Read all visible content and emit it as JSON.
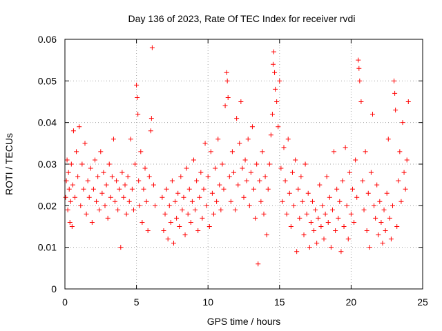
{
  "chart_data": {
    "type": "scatter",
    "title": "Day 136 of 2023, Rate Of TEC Index for receiver rvdi",
    "xlabel": "GPS time / hours",
    "ylabel": "ROTI / TECUs",
    "xlim": [
      0,
      25
    ],
    "ylim": [
      0,
      0.06
    ],
    "xticks": [
      0,
      5,
      10,
      15,
      20,
      25
    ],
    "xtick_labels": [
      "0",
      "5",
      "10",
      "15",
      "20",
      "25"
    ],
    "yticks": [
      0,
      0.01,
      0.02,
      0.03,
      0.04,
      0.05,
      0.06
    ],
    "ytick_labels": [
      "0",
      "0.01",
      "0.02",
      "0.03",
      "0.04",
      "0.05",
      "0.06"
    ],
    "grid": true,
    "marker": "plus",
    "color": "#ff0000",
    "series": [
      {
        "points": [
          [
            0.05,
            0.022
          ],
          [
            0.1,
            0.026
          ],
          [
            0.15,
            0.031
          ],
          [
            0.2,
            0.019
          ],
          [
            0.25,
            0.028
          ],
          [
            0.3,
            0.024
          ],
          [
            0.35,
            0.016
          ],
          [
            0.4,
            0.021
          ],
          [
            0.45,
            0.03
          ],
          [
            0.5,
            0.015
          ],
          [
            0.55,
            0.025
          ],
          [
            0.6,
            0.038
          ],
          [
            0.7,
            0.022
          ],
          [
            0.8,
            0.033
          ],
          [
            0.9,
            0.027
          ],
          [
            1.0,
            0.039
          ],
          [
            1.1,
            0.02
          ],
          [
            1.2,
            0.03
          ],
          [
            1.3,
            0.024
          ],
          [
            1.4,
            0.035
          ],
          [
            1.5,
            0.018
          ],
          [
            1.6,
            0.026
          ],
          [
            1.7,
            0.022
          ],
          [
            1.8,
            0.029
          ],
          [
            1.9,
            0.016
          ],
          [
            2.0,
            0.024
          ],
          [
            2.1,
            0.031
          ],
          [
            2.2,
            0.021
          ],
          [
            2.3,
            0.027
          ],
          [
            2.4,
            0.019
          ],
          [
            2.5,
            0.033
          ],
          [
            2.6,
            0.023
          ],
          [
            2.7,
            0.028
          ],
          [
            2.8,
            0.02
          ],
          [
            2.9,
            0.025
          ],
          [
            3.0,
            0.017
          ],
          [
            3.1,
            0.03
          ],
          [
            3.2,
            0.022
          ],
          [
            3.3,
            0.027
          ],
          [
            3.4,
            0.036
          ],
          [
            3.5,
            0.021
          ],
          [
            3.6,
            0.026
          ],
          [
            3.7,
            0.019
          ],
          [
            3.8,
            0.024
          ],
          [
            3.9,
            0.01
          ],
          [
            4.0,
            0.028
          ],
          [
            4.1,
            0.022
          ],
          [
            4.2,
            0.025
          ],
          [
            4.3,
            0.018
          ],
          [
            4.4,
            0.027
          ],
          [
            4.5,
            0.021
          ],
          [
            4.6,
            0.036
          ],
          [
            4.7,
            0.024
          ],
          [
            4.8,
            0.019
          ],
          [
            4.9,
            0.03
          ],
          [
            5.0,
            0.049
          ],
          [
            5.05,
            0.046
          ],
          [
            5.1,
            0.042
          ],
          [
            5.15,
            0.026
          ],
          [
            5.2,
            0.02
          ],
          [
            5.3,
            0.033
          ],
          [
            5.4,
            0.016
          ],
          [
            5.5,
            0.024
          ],
          [
            5.6,
            0.029
          ],
          [
            5.7,
            0.021
          ],
          [
            5.8,
            0.014
          ],
          [
            5.9,
            0.027
          ],
          [
            6.0,
            0.038
          ],
          [
            6.05,
            0.041
          ],
          [
            6.1,
            0.058
          ],
          [
            6.2,
            0.025
          ],
          [
            6.3,
            0.02
          ],
          [
            6.8,
            0.022
          ],
          [
            6.9,
            0.014
          ],
          [
            7.0,
            0.018
          ],
          [
            7.1,
            0.024
          ],
          [
            7.2,
            0.012
          ],
          [
            7.3,
            0.02
          ],
          [
            7.4,
            0.016
          ],
          [
            7.5,
            0.026
          ],
          [
            7.6,
            0.011
          ],
          [
            7.7,
            0.021
          ],
          [
            7.8,
            0.017
          ],
          [
            7.9,
            0.023
          ],
          [
            8.0,
            0.015
          ],
          [
            8.1,
            0.027
          ],
          [
            8.2,
            0.019
          ],
          [
            8.3,
            0.022
          ],
          [
            8.4,
            0.013
          ],
          [
            8.5,
            0.029
          ],
          [
            8.6,
            0.018
          ],
          [
            8.7,
            0.024
          ],
          [
            8.8,
            0.016
          ],
          [
            8.9,
            0.021
          ],
          [
            9.0,
            0.031
          ],
          [
            9.1,
            0.019
          ],
          [
            9.2,
            0.026
          ],
          [
            9.3,
            0.014
          ],
          [
            9.4,
            0.022
          ],
          [
            9.5,
            0.028
          ],
          [
            9.6,
            0.017
          ],
          [
            9.7,
            0.024
          ],
          [
            9.8,
            0.035
          ],
          [
            9.9,
            0.02
          ],
          [
            10.0,
            0.027
          ],
          [
            10.1,
            0.015
          ],
          [
            10.2,
            0.033
          ],
          [
            10.3,
            0.023
          ],
          [
            10.4,
            0.018
          ],
          [
            10.5,
            0.029
          ],
          [
            10.6,
            0.021
          ],
          [
            10.7,
            0.036
          ],
          [
            10.8,
            0.025
          ],
          [
            10.9,
            0.019
          ],
          [
            11.0,
            0.03
          ],
          [
            11.1,
            0.024
          ],
          [
            11.2,
            0.044
          ],
          [
            11.3,
            0.052
          ],
          [
            11.35,
            0.05
          ],
          [
            11.4,
            0.046
          ],
          [
            11.5,
            0.027
          ],
          [
            11.6,
            0.021
          ],
          [
            11.7,
            0.033
          ],
          [
            11.8,
            0.028
          ],
          [
            11.9,
            0.019
          ],
          [
            12.0,
            0.041
          ],
          [
            12.1,
            0.025
          ],
          [
            12.2,
            0.035
          ],
          [
            12.3,
            0.045
          ],
          [
            12.4,
            0.029
          ],
          [
            12.5,
            0.022
          ],
          [
            12.6,
            0.031
          ],
          [
            12.7,
            0.026
          ],
          [
            12.8,
            0.036
          ],
          [
            12.9,
            0.02
          ],
          [
            13.0,
            0.028
          ],
          [
            13.1,
            0.039
          ],
          [
            13.2,
            0.024
          ],
          [
            13.3,
            0.017
          ],
          [
            13.4,
            0.03
          ],
          [
            13.5,
            0.006
          ],
          [
            13.6,
            0.026
          ],
          [
            13.7,
            0.021
          ],
          [
            13.8,
            0.033
          ],
          [
            13.9,
            0.018
          ],
          [
            14.0,
            0.027
          ],
          [
            14.1,
            0.013
          ],
          [
            14.2,
            0.024
          ],
          [
            14.3,
            0.03
          ],
          [
            14.4,
            0.037
          ],
          [
            14.5,
            0.042
          ],
          [
            14.55,
            0.054
          ],
          [
            14.6,
            0.057
          ],
          [
            14.65,
            0.052
          ],
          [
            14.7,
            0.048
          ],
          [
            14.8,
            0.045
          ],
          [
            14.9,
            0.039
          ],
          [
            15.0,
            0.05
          ],
          [
            15.1,
            0.029
          ],
          [
            15.2,
            0.021
          ],
          [
            15.3,
            0.034
          ],
          [
            15.4,
            0.026
          ],
          [
            15.5,
            0.018
          ],
          [
            15.6,
            0.036
          ],
          [
            15.7,
            0.023
          ],
          [
            15.8,
            0.015
          ],
          [
            15.9,
            0.028
          ],
          [
            16.0,
            0.02
          ],
          [
            16.1,
            0.031
          ],
          [
            16.2,
            0.009
          ],
          [
            16.3,
            0.024
          ],
          [
            16.4,
            0.017
          ],
          [
            16.5,
            0.027
          ],
          [
            16.6,
            0.021
          ],
          [
            16.7,
            0.013
          ],
          [
            16.8,
            0.03
          ],
          [
            16.9,
            0.018
          ],
          [
            17.0,
            0.023
          ],
          [
            17.1,
            0.01
          ],
          [
            17.2,
            0.016
          ],
          [
            17.3,
            0.021
          ],
          [
            17.4,
            0.014
          ],
          [
            17.5,
            0.019
          ],
          [
            17.6,
            0.011
          ],
          [
            17.7,
            0.017
          ],
          [
            17.8,
            0.025
          ],
          [
            17.9,
            0.015
          ],
          [
            18.0,
            0.02
          ],
          [
            18.1,
            0.012
          ],
          [
            18.2,
            0.018
          ],
          [
            18.3,
            0.027
          ],
          [
            18.4,
            0.016
          ],
          [
            18.5,
            0.022
          ],
          [
            18.6,
            0.01
          ],
          [
            18.7,
            0.019
          ],
          [
            18.8,
            0.033
          ],
          [
            18.9,
            0.014
          ],
          [
            19.0,
            0.024
          ],
          [
            19.1,
            0.017
          ],
          [
            19.2,
            0.021
          ],
          [
            19.3,
            0.009
          ],
          [
            19.4,
            0.026
          ],
          [
            19.5,
            0.015
          ],
          [
            19.6,
            0.034
          ],
          [
            19.7,
            0.02
          ],
          [
            19.8,
            0.012
          ],
          [
            19.9,
            0.028
          ],
          [
            20.0,
            0.018
          ],
          [
            20.1,
            0.024
          ],
          [
            20.2,
            0.016
          ],
          [
            20.3,
            0.031
          ],
          [
            20.4,
            0.022
          ],
          [
            20.5,
            0.055
          ],
          [
            20.55,
            0.053
          ],
          [
            20.6,
            0.05
          ],
          [
            20.7,
            0.045
          ],
          [
            20.8,
            0.026
          ],
          [
            20.9,
            0.019
          ],
          [
            21.0,
            0.033
          ],
          [
            21.1,
            0.014
          ],
          [
            21.2,
            0.023
          ],
          [
            21.3,
            0.01
          ],
          [
            21.4,
            0.028
          ],
          [
            21.5,
            0.042
          ],
          [
            21.6,
            0.02
          ],
          [
            21.7,
            0.017
          ],
          [
            21.8,
            0.025
          ],
          [
            21.9,
            0.013
          ],
          [
            22.0,
            0.021
          ],
          [
            22.1,
            0.016
          ],
          [
            22.2,
            0.011
          ],
          [
            22.3,
            0.019
          ],
          [
            22.4,
            0.014
          ],
          [
            22.5,
            0.023
          ],
          [
            22.6,
            0.036
          ],
          [
            22.7,
            0.017
          ],
          [
            22.8,
            0.012
          ],
          [
            22.9,
            0.02
          ],
          [
            23.0,
            0.05
          ],
          [
            23.05,
            0.047
          ],
          [
            23.1,
            0.043
          ],
          [
            23.2,
            0.015
          ],
          [
            23.3,
            0.026
          ],
          [
            23.4,
            0.033
          ],
          [
            23.5,
            0.021
          ],
          [
            23.6,
            0.04
          ],
          [
            23.7,
            0.028
          ],
          [
            23.8,
            0.024
          ],
          [
            23.9,
            0.031
          ],
          [
            24.0,
            0.045
          ]
        ]
      }
    ]
  }
}
